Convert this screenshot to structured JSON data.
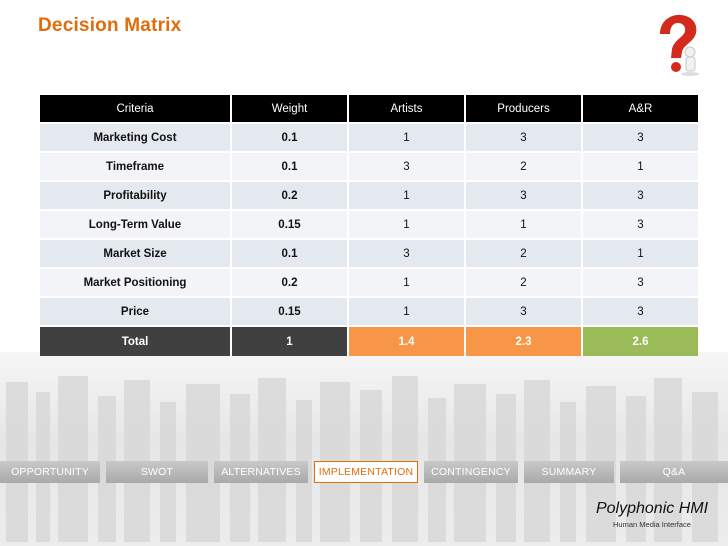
{
  "slide": {
    "title": "Decision Matrix",
    "icon": "question-mark-figure-icon"
  },
  "table": {
    "headers": [
      "Criteria",
      "Weight",
      "Artists",
      "Producers",
      "A&R"
    ],
    "rows": [
      [
        "Marketing Cost",
        "0.1",
        "1",
        "3",
        "3"
      ],
      [
        "Timeframe",
        "0.1",
        "3",
        "2",
        "1"
      ],
      [
        "Profitability",
        "0.2",
        "1",
        "3",
        "3"
      ],
      [
        "Long-Term Value",
        "0.15",
        "1",
        "1",
        "3"
      ],
      [
        "Market Size",
        "0.1",
        "3",
        "2",
        "1"
      ],
      [
        "Market Positioning",
        "0.2",
        "1",
        "2",
        "3"
      ],
      [
        "Price",
        "0.15",
        "1",
        "3",
        "3"
      ]
    ],
    "total": [
      "Total",
      "1",
      "1.4",
      "2.3",
      "2.6"
    ],
    "colors": {
      "header": "#000000",
      "total_dark": "#404040",
      "total_orange": "#f79646",
      "total_green": "#9bbb59"
    }
  },
  "nav": {
    "items": [
      {
        "label": "OPPORTUNITY",
        "active": false
      },
      {
        "label": "SWOT",
        "active": false
      },
      {
        "label": "ALTERNATIVES",
        "active": false
      },
      {
        "label": "IMPLEMENTATION",
        "active": true
      },
      {
        "label": "CONTINGENCY",
        "active": false
      },
      {
        "label": "SUMMARY",
        "active": false
      },
      {
        "label": "Q&A",
        "active": false
      }
    ],
    "accent": "#e36c0a"
  },
  "brand": {
    "name": "Polyphonic HMI",
    "tagline": "Human Media Interface"
  }
}
